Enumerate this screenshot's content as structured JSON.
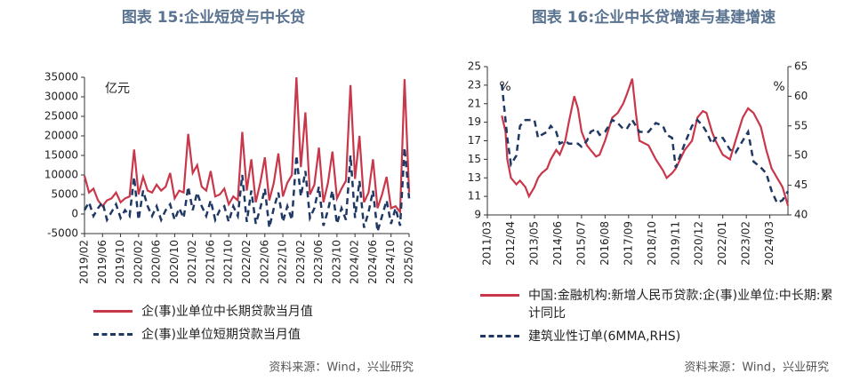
{
  "chart_data": [
    {
      "type": "line",
      "title": "图表 15:企业短贷与中长贷",
      "annotations": [
        "亿元"
      ],
      "source": "资料来源：Wind，兴业研究",
      "x": [
        "2019/02",
        "2019/03",
        "2019/04",
        "2019/05",
        "2019/06",
        "2019/07",
        "2019/08",
        "2019/09",
        "2019/10",
        "2019/11",
        "2019/12",
        "2020/01",
        "2020/02",
        "2020/03",
        "2020/04",
        "2020/05",
        "2020/06",
        "2020/07",
        "2020/08",
        "2020/09",
        "2020/10",
        "2020/11",
        "2020/12",
        "2021/01",
        "2021/02",
        "2021/03",
        "2021/04",
        "2021/05",
        "2021/06",
        "2021/07",
        "2021/08",
        "2021/09",
        "2021/10",
        "2021/11",
        "2021/12",
        "2022/01",
        "2022/02",
        "2022/03",
        "2022/04",
        "2022/05",
        "2022/06",
        "2022/07",
        "2022/08",
        "2022/09",
        "2022/10",
        "2022/11",
        "2022/12",
        "2023/01",
        "2023/02",
        "2023/03",
        "2023/04",
        "2023/05",
        "2023/06",
        "2023/07",
        "2023/08",
        "2023/09",
        "2023/10",
        "2023/11",
        "2023/12",
        "2024/01",
        "2024/02",
        "2024/03",
        "2024/04",
        "2024/05",
        "2024/06",
        "2024/07",
        "2024/08",
        "2024/09",
        "2024/10",
        "2024/11",
        "2024/12",
        "2025/01",
        "2025/02"
      ],
      "xlim": [
        "2019/02",
        "2025/02"
      ],
      "xticks": [
        "2019/02",
        "2019/06",
        "2019/10",
        "2020/02",
        "2020/06",
        "2020/10",
        "2021/02",
        "2021/06",
        "2021/10",
        "2022/02",
        "2022/06",
        "2022/10",
        "2023/02",
        "2023/06",
        "2023/10",
        "2024/02",
        "2024/06",
        "2024/10",
        "2025/02"
      ],
      "ylim": [
        -5000,
        35000
      ],
      "yticks": [
        -5000,
        0,
        5000,
        10000,
        15000,
        20000,
        25000,
        30000,
        35000
      ],
      "series": [
        {
          "name": "企(事)业单位中长期贷款当月值",
          "color": "#c8374a",
          "linestyle": "solid",
          "values": [
            9800,
            5500,
            6500,
            3500,
            2000,
            3500,
            4000,
            5500,
            3000,
            4000,
            4500,
            16500,
            5000,
            9500,
            6000,
            5500,
            7500,
            6000,
            7000,
            10500,
            4000,
            6000,
            5500,
            20500,
            10500,
            12500,
            7000,
            6000,
            11000,
            4500,
            5000,
            6500,
            2500,
            4500,
            3500,
            21000,
            6000,
            14000,
            3000,
            8000,
            14500,
            3500,
            8000,
            15500,
            4500,
            8000,
            10000,
            35000,
            12000,
            26000,
            5000,
            7500,
            17000,
            3000,
            8000,
            16000,
            4000,
            6500,
            8500,
            33000,
            9000,
            20000,
            3000,
            5500,
            14000,
            1500,
            5000,
            9500,
            1500,
            2000,
            500,
            34500,
            5500
          ]
        },
        {
          "name": "企(事)业单位短期贷款当月值",
          "color": "#1f3864",
          "linestyle": "dashed",
          "values": [
            1000,
            3000,
            -500,
            1500,
            3000,
            -1500,
            500,
            2500,
            -1000,
            1000,
            -500,
            9500,
            -1500,
            6000,
            2000,
            -500,
            2000,
            -1500,
            1000,
            2500,
            -1500,
            1500,
            -1000,
            7000,
            1000,
            5500,
            2000,
            -500,
            3500,
            -1500,
            1000,
            2000,
            -2000,
            2000,
            -500,
            10000,
            -2000,
            6000,
            -2500,
            1500,
            6500,
            -3500,
            1500,
            5500,
            -2000,
            2000,
            -1500,
            15000,
            4500,
            11000,
            -1000,
            1500,
            7000,
            -3000,
            1000,
            6000,
            -2500,
            1500,
            -1500,
            15000,
            -1000,
            8500,
            -3500,
            500,
            6000,
            -4500,
            -500,
            3500,
            -2500,
            1500,
            -3000,
            17000,
            4000
          ]
        }
      ]
    },
    {
      "type": "line",
      "title": "图表 16:企业中长贷增速与基建增速",
      "annotations": [
        "%",
        "%"
      ],
      "source": "资料来源：Wind，兴业研究",
      "x": [
        "2011/11",
        "2012/01",
        "2012/02",
        "2012/04",
        "2012/07",
        "2012/09",
        "2012/12",
        "2013/02",
        "2013/05",
        "2013/07",
        "2013/09",
        "2013/12",
        "2014/02",
        "2014/05",
        "2014/07",
        "2014/10",
        "2014/12",
        "2015/03",
        "2015/05",
        "2015/07",
        "2015/10",
        "2015/12",
        "2016/03",
        "2016/05",
        "2016/08",
        "2016/12",
        "2017/03",
        "2017/06",
        "2017/08",
        "2017/11",
        "2018/01",
        "2018/03",
        "2018/08",
        "2018/12",
        "2019/04",
        "2019/06",
        "2019/09",
        "2019/11",
        "2020/04",
        "2020/08",
        "2020/11",
        "2021/02",
        "2021/04",
        "2021/07",
        "2021/09",
        "2022/01",
        "2022/05",
        "2022/08",
        "2022/12",
        "2023/03",
        "2023/06",
        "2023/10",
        "2024/01",
        "2024/04",
        "2024/07",
        "2024/10",
        "2025/01"
      ],
      "xlim": [
        "2011/03",
        "2025/01"
      ],
      "xticks": [
        "2011/03",
        "2012/04",
        "2013/05",
        "2014/06",
        "2015/07",
        "2016/08",
        "2017/09",
        "2018/10",
        "2019/11",
        "2020/12",
        "2022/01",
        "2023/02",
        "2024/03"
      ],
      "ylim": [
        9,
        25
      ],
      "yticks": [
        9,
        11,
        13,
        15,
        17,
        19,
        21,
        23,
        25
      ],
      "y2lim": [
        40,
        65
      ],
      "y2ticks": [
        40,
        45,
        50,
        55,
        60,
        65
      ],
      "series": [
        {
          "name": "中国:金融机构:新增人民币贷款:企(事)业单位:中长期:累计同比",
          "color": "#c8374a",
          "linestyle": "solid",
          "values": [
            19.7,
            18,
            15,
            13,
            12.3,
            12.7,
            12,
            11,
            12,
            13,
            13.5,
            14,
            15,
            16,
            15.5,
            17,
            19,
            21.8,
            20.5,
            18,
            16.5,
            16,
            15.3,
            15.5,
            17,
            19.5,
            20,
            21,
            22,
            23.7,
            20,
            17,
            16.5,
            15,
            13.8,
            13,
            13.5,
            14,
            16,
            17,
            19.5,
            20.2,
            20,
            18,
            17,
            15.5,
            15,
            17,
            19.5,
            20.5,
            20,
            18.5,
            16,
            14,
            13,
            12,
            10
          ]
        },
        {
          "name": "建筑业性订单(6MMA,RHS)",
          "color": "#1f3864",
          "linestyle": "dashed",
          "axis": "y2",
          "values": [
            62,
            56,
            53,
            48.5,
            50,
            55,
            56,
            56,
            56,
            53,
            53.5,
            54,
            55,
            54,
            52,
            52.5,
            52,
            52,
            52,
            51.5,
            52.5,
            54,
            54.5,
            53.5,
            54,
            56,
            55.5,
            54.5,
            54.5,
            56,
            55,
            54,
            54,
            55.5,
            55,
            53.5,
            53,
            48,
            52,
            55,
            56,
            55,
            54,
            52,
            53,
            53,
            51,
            50.5,
            52.5,
            54,
            49,
            48,
            47,
            44,
            42,
            42.5,
            44
          ]
        }
      ]
    }
  ]
}
